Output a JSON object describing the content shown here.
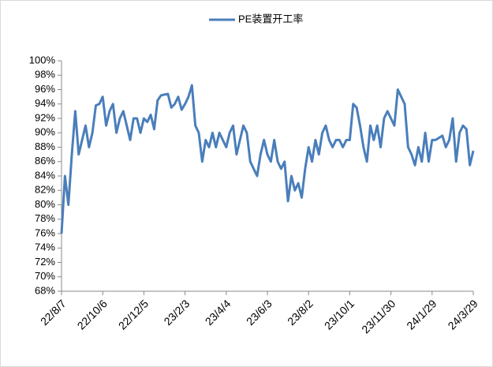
{
  "chart_data": {
    "type": "line",
    "categories": [
      "22/8/7",
      null,
      null,
      null,
      null,
      null,
      null,
      null,
      null,
      null,
      null,
      null,
      "22/10/6",
      null,
      null,
      null,
      null,
      null,
      null,
      null,
      null,
      null,
      null,
      null,
      "22/12/5",
      null,
      null,
      null,
      null,
      null,
      null,
      null,
      null,
      null,
      null,
      null,
      "23/2/3",
      null,
      null,
      null,
      null,
      null,
      null,
      null,
      null,
      null,
      null,
      null,
      "23/4/4",
      null,
      null,
      null,
      null,
      null,
      null,
      null,
      null,
      null,
      null,
      null,
      "23/6/3",
      null,
      null,
      null,
      null,
      null,
      null,
      null,
      null,
      null,
      null,
      null,
      "23/8/2",
      null,
      null,
      null,
      null,
      null,
      null,
      null,
      null,
      null,
      null,
      null,
      "23/10/1",
      null,
      null,
      null,
      null,
      null,
      null,
      null,
      null,
      null,
      null,
      null,
      "23/11/30",
      null,
      null,
      null,
      null,
      null,
      null,
      null,
      null,
      null,
      null,
      null,
      "24/1/29",
      null,
      null,
      null,
      null,
      null,
      null,
      null,
      null,
      null,
      null,
      null,
      "24/3/29"
    ],
    "series": [
      {
        "name": "PE装置开工率",
        "color": "#4a7ebb",
        "values": [
          76,
          84,
          80,
          87,
          93,
          87,
          89,
          91,
          88,
          90,
          93.8,
          94,
          95,
          91,
          93,
          94,
          90,
          92,
          93,
          91,
          89,
          92,
          92,
          90,
          92,
          91.5,
          92.5,
          90.5,
          94.5,
          95.2,
          95.3,
          95.4,
          93.5,
          94,
          95,
          93.2,
          94,
          95,
          96.6,
          91,
          90,
          86,
          89,
          88,
          90,
          88,
          90,
          89,
          88,
          90,
          91,
          87,
          89,
          91,
          90,
          86,
          85,
          84,
          87,
          89,
          87,
          86,
          89,
          86,
          85,
          86,
          80.5,
          84,
          82,
          83,
          81,
          85,
          88,
          86,
          89,
          87,
          90,
          91,
          89,
          88,
          89,
          89,
          88,
          89,
          89,
          94,
          93.5,
          91,
          88,
          86,
          91,
          89,
          91,
          88,
          92,
          93,
          92,
          91,
          96,
          95,
          94,
          88,
          87,
          85.5,
          88,
          86,
          90,
          86,
          89,
          89,
          89.3,
          89.6,
          88,
          89,
          92,
          86,
          90,
          91,
          90.5,
          85.5,
          87.5
        ]
      }
    ],
    "ylim": [
      68,
      100
    ],
    "yticks": [
      {
        "value": 68,
        "label": "68%"
      },
      {
        "value": 70,
        "label": "70%"
      },
      {
        "value": 72,
        "label": "72%"
      },
      {
        "value": 74,
        "label": "74%"
      },
      {
        "value": 76,
        "label": "76%"
      },
      {
        "value": 78,
        "label": "78%"
      },
      {
        "value": 80,
        "label": "80%"
      },
      {
        "value": 82,
        "label": "82%"
      },
      {
        "value": 84,
        "label": "84%"
      },
      {
        "value": 86,
        "label": "86%"
      },
      {
        "value": 88,
        "label": "88%"
      },
      {
        "value": 90,
        "label": "90%"
      },
      {
        "value": 92,
        "label": "92%"
      },
      {
        "value": 94,
        "label": "94%"
      },
      {
        "value": 96,
        "label": "96%"
      },
      {
        "value": 98,
        "label": "98%"
      },
      {
        "value": 100,
        "label": "100%"
      }
    ]
  }
}
